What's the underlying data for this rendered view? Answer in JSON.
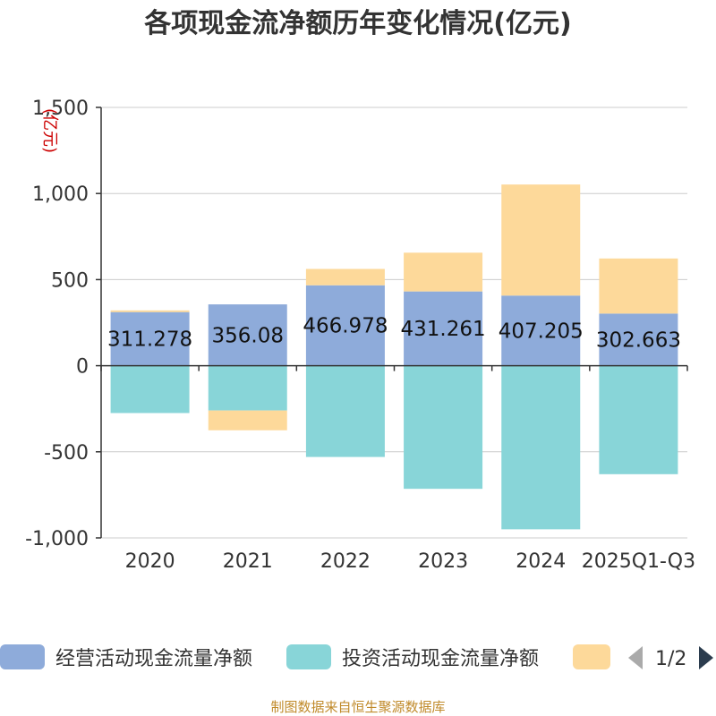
{
  "colors": {
    "operating": "#8eabda",
    "investing": "#88d5d8",
    "financing": "#fdd99a",
    "grid": "#cccccc",
    "axis": "#333333",
    "source": "#c08a2a",
    "unit": "#cc0000",
    "pager_active": "#2b3c4e",
    "pager_inactive": "#aaaaaa"
  },
  "chart_data": {
    "type": "bar",
    "stacked": true,
    "title": "各项现金流净额历年变化情况(亿元)",
    "ylabel": "(亿元)",
    "ylim": [
      -1000,
      1500
    ],
    "yticks": [
      1500,
      1000,
      500,
      0,
      -500,
      -1000
    ],
    "ytick_labels": [
      "1,500",
      "1,000",
      "500",
      "0",
      "-500",
      "-1,000"
    ],
    "categories": [
      "2020",
      "2021",
      "2022",
      "2023",
      "2024",
      "2025Q1-Q3"
    ],
    "series": [
      {
        "name": "经营活动现金流量净额",
        "key": "operating",
        "values": [
          311.278,
          356.08,
          466.978,
          431.261,
          407.205,
          302.663
        ],
        "labels": [
          "311.278",
          "356.08",
          "466.978",
          "431.261",
          "407.205",
          "302.663"
        ]
      },
      {
        "name": "投资活动现金流量净额",
        "key": "investing",
        "values": [
          -275,
          -260,
          -530,
          -715,
          -950,
          -630
        ]
      },
      {
        "name": "",
        "key": "financing",
        "values": [
          10,
          -115,
          95,
          225,
          645,
          320
        ]
      }
    ],
    "legend_position": "bottom",
    "legend_page": "1/2",
    "grid": true
  },
  "source": "制图数据来自恒生聚源数据库",
  "icons": {
    "prev": "chevron-left-icon",
    "next": "chevron-right-icon"
  }
}
